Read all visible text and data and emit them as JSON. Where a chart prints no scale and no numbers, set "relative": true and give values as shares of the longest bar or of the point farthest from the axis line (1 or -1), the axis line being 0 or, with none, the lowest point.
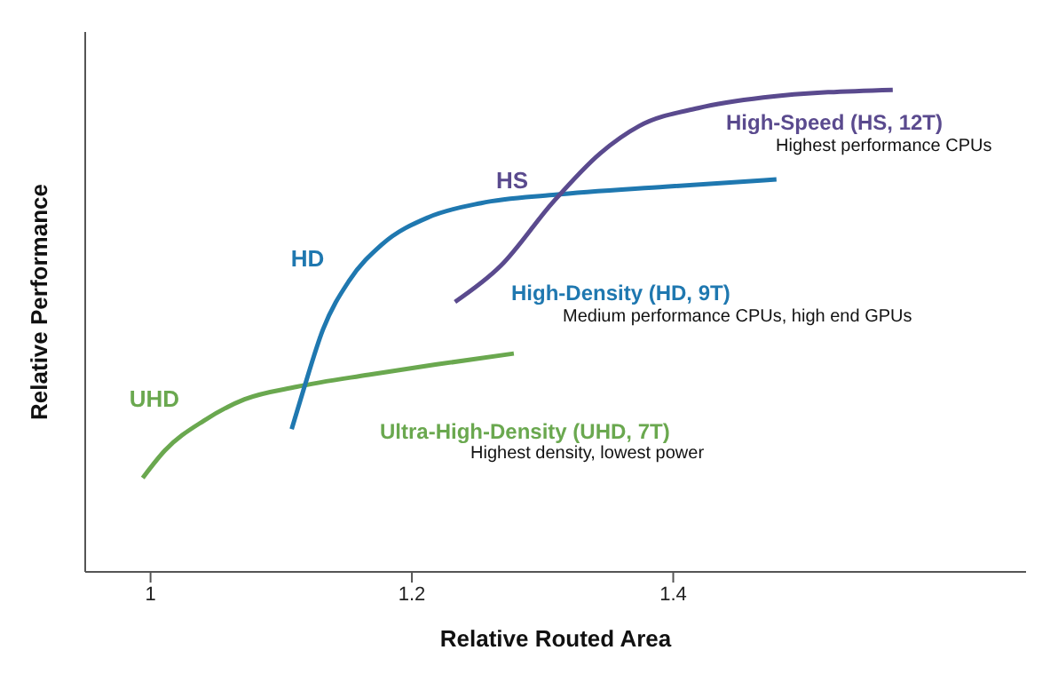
{
  "chart_data": {
    "type": "line",
    "xlabel": "Relative Routed Area",
    "ylabel": "Relative Performance",
    "relative": true,
    "xlim": [
      0.95,
      1.67
    ],
    "xticks": [
      1,
      1.2,
      1.4
    ],
    "grid": false,
    "legend": false,
    "marker": "none",
    "line_style": "solid",
    "series": [
      {
        "name": "UHD",
        "color": "#6aa84f",
        "x": [
          0.994,
          1.011,
          1.041,
          1.072,
          1.112,
          1.167,
          1.218,
          1.278
        ],
        "values": [
          0.195,
          0.252,
          0.314,
          0.358,
          0.384,
          0.409,
          0.43,
          0.453
        ]
      },
      {
        "name": "HD",
        "color": "#1f78b0",
        "x": [
          1.108,
          1.117,
          1.132,
          1.152,
          1.177,
          1.213,
          1.253,
          1.308,
          1.394,
          1.479
        ],
        "values": [
          0.296,
          0.377,
          0.503,
          0.604,
          0.679,
          0.736,
          0.765,
          0.782,
          0.799,
          0.814
        ]
      },
      {
        "name": "HS",
        "color": "#5a4a8e",
        "x": [
          1.233,
          1.268,
          1.308,
          1.344,
          1.374,
          1.419,
          1.469,
          1.568
        ],
        "values": [
          0.56,
          0.635,
          0.767,
          0.868,
          0.925,
          0.962,
          0.984,
          1
        ]
      }
    ],
    "annotations": [
      "Ultra-High-Density (UHD, 7T)",
      "Highest density, lowest power",
      "High-Density (HD, 9T)",
      "Medium performance CPUs, high end GPUs",
      "High-Speed (HS, 12T)",
      "Highest performance CPUs"
    ]
  }
}
